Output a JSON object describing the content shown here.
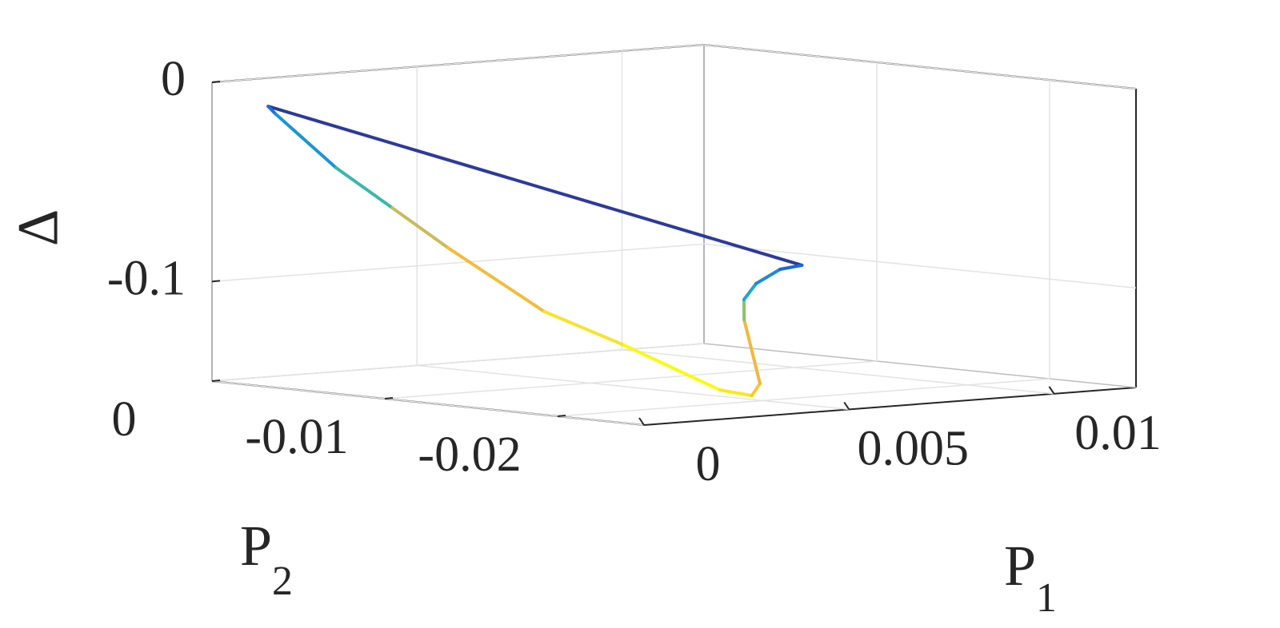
{
  "chart_data": {
    "type": "line3d",
    "xlabel": [
      "P",
      "1"
    ],
    "ylabel": [
      "P",
      "2"
    ],
    "zlabel": "Δ",
    "xlim": [
      0,
      0.012
    ],
    "ylim": [
      -0.025,
      0
    ],
    "ydir": "reverse",
    "zlim": [
      -0.15,
      0
    ],
    "xticks": [
      0,
      0.005,
      0.01
    ],
    "yticks": [
      0,
      -0.01,
      -0.02
    ],
    "zticks": [
      0,
      -0.1
    ],
    "grid": true,
    "x": [
      0.006,
      0,
      0,
      0,
      0,
      0,
      0,
      0,
      0.003,
      0.0036,
      0.00384,
      0.0042,
      0.00444,
      0.00504,
      0.00564,
      0.006
    ],
    "y": [
      -0.0199,
      -0.00325,
      -0.0037,
      -0.00718,
      -0.01043,
      -0.01365,
      -0.01923,
      -0.02385,
      -0.02228,
      -0.0227,
      -0.0226,
      -0.02083,
      -0.02025,
      -0.01953,
      -0.0195,
      -0.0199
    ],
    "z": [
      -0.0837,
      -0.0092,
      -0.0128,
      -0.0366,
      -0.0538,
      -0.071,
      -0.0981,
      -0.1109,
      -0.1395,
      -0.1429,
      -0.1373,
      -0.1074,
      -0.0982,
      -0.0917,
      -0.0855,
      -0.0837
    ],
    "colors": [
      "#2c3a9c",
      "#2c3a9c",
      "#1c6fe0",
      "#1a95d4",
      "#3bb7a8",
      "#c9bb5a",
      "#f2bc3c",
      "#f6e42a",
      "#f9fb0e",
      "#f9e81a",
      "#fac92e",
      "#f0b83e",
      "#8ec06e",
      "#1fa9c3",
      "#1d8ad8",
      "#1868dc"
    ]
  }
}
